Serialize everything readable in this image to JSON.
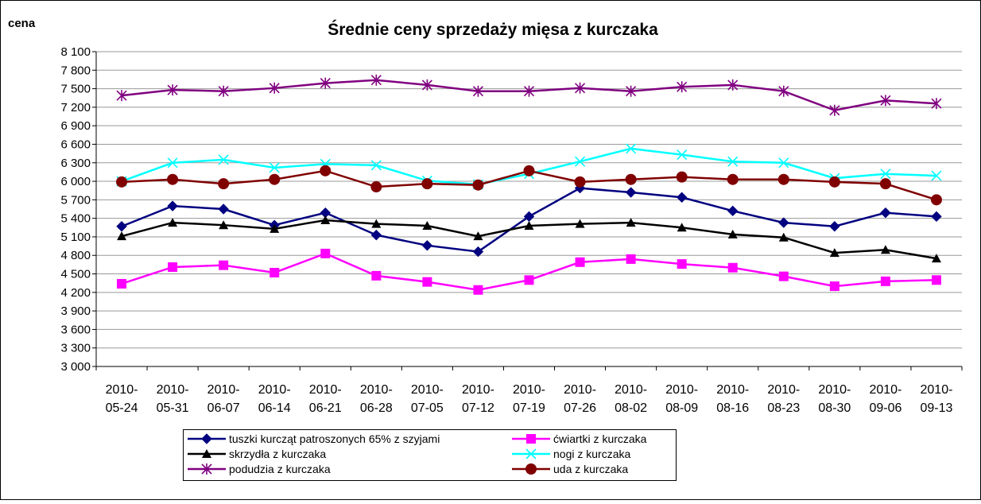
{
  "chart_data": {
    "type": "line",
    "title": "Średnie ceny sprzedaży mięsa z kurczaka",
    "y_label": "cena",
    "categories": [
      "2010-05-24",
      "2010-05-31",
      "2010-06-07",
      "2010-06-14",
      "2010-06-21",
      "2010-06-28",
      "2010-07-05",
      "2010-07-12",
      "2010-07-19",
      "2010-07-26",
      "2010-08-02",
      "2010-08-09",
      "2010-08-16",
      "2010-08-23",
      "2010-08-30",
      "2010-09-06",
      "2010-09-13"
    ],
    "ylim": [
      3000,
      8100
    ],
    "yticks": [
      {
        "value": 3000,
        "label": "3 000"
      },
      {
        "value": 3300,
        "label": "3 300"
      },
      {
        "value": 3600,
        "label": "3 600"
      },
      {
        "value": 3900,
        "label": "3 900"
      },
      {
        "value": 4200,
        "label": "4 200"
      },
      {
        "value": 4500,
        "label": "4 500"
      },
      {
        "value": 4800,
        "label": "4 800"
      },
      {
        "value": 5100,
        "label": "5 100"
      },
      {
        "value": 5400,
        "label": "5 400"
      },
      {
        "value": 5700,
        "label": "5 700"
      },
      {
        "value": 6000,
        "label": "6 000"
      },
      {
        "value": 6300,
        "label": "6 300"
      },
      {
        "value": 6600,
        "label": "6 600"
      },
      {
        "value": 6900,
        "label": "6 900"
      },
      {
        "value": 7200,
        "label": "7 200"
      },
      {
        "value": 7500,
        "label": "7 500"
      },
      {
        "value": 7800,
        "label": "7 800"
      },
      {
        "value": 8100,
        "label": "8 100"
      }
    ],
    "grid": true,
    "legend": "bottom",
    "series": [
      {
        "name": "tuszki kurcząt patroszonych 65% z szyjami",
        "color": "#000080",
        "marker": "diamond",
        "values": [
          5270,
          5600,
          5550,
          5290,
          5490,
          5130,
          4960,
          4860,
          5430,
          5890,
          5820,
          5740,
          5520,
          5330,
          5270,
          5490,
          5430
        ]
      },
      {
        "name": "ćwiartki z kurczaka",
        "color": "#ff00ff",
        "marker": "square",
        "values": [
          4340,
          4610,
          4640,
          4520,
          4830,
          4470,
          4370,
          4240,
          4400,
          4690,
          4740,
          4660,
          4600,
          4460,
          4300,
          4380,
          4400
        ]
      },
      {
        "name": "skrzydła z kurczaka",
        "color": "#000000",
        "marker": "triangle",
        "values": [
          5110,
          5330,
          5290,
          5230,
          5370,
          5310,
          5280,
          5110,
          5280,
          5310,
          5330,
          5250,
          5140,
          5090,
          4840,
          4890,
          4750
        ]
      },
      {
        "name": "nogi z kurczaka",
        "color": "#00ffff",
        "marker": "x",
        "values": [
          6000,
          6300,
          6350,
          6220,
          6280,
          6260,
          6010,
          5950,
          6120,
          6320,
          6530,
          6430,
          6320,
          6300,
          6050,
          6120,
          6090
        ]
      },
      {
        "name": "podudzia z kurczaka",
        "color": "#800080",
        "marker": "star",
        "values": [
          7390,
          7480,
          7460,
          7510,
          7590,
          7640,
          7560,
          7460,
          7460,
          7510,
          7460,
          7530,
          7560,
          7460,
          7150,
          7310,
          7260
        ]
      },
      {
        "name": "uda z kurczaka",
        "color": "#800000",
        "marker": "circle",
        "values": [
          5990,
          6030,
          5960,
          6030,
          6170,
          5910,
          5960,
          5940,
          6170,
          5990,
          6030,
          6070,
          6030,
          6030,
          5990,
          5960,
          5700
        ]
      }
    ]
  }
}
